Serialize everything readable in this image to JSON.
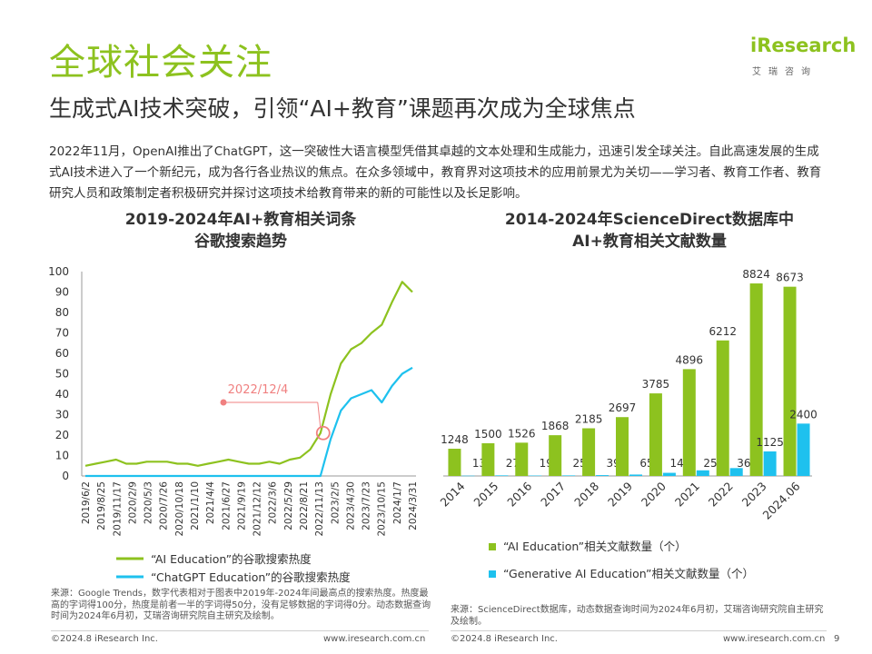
{
  "header": {
    "title": "全球社会关注",
    "subtitle": "生成式AI技术突破，引领“AI+教育”课题再次成为全球焦点",
    "logo": "iResearch",
    "logo_sub": "艾瑞咨询"
  },
  "intro": "2022年11月，OpenAI推出了ChatGPT，这一突破性大语言模型凭借其卓越的文本处理和生成能力，迅速引发全球关注。自此高速发展的生成式AI技术进入了一个新纪元，成为各行各业热议的焦点。在众多领域中，教育界对这项技术的应用前景尤为关切——学习者、教育工作者、教育研究人员和政策制定者积极研究并探讨这项技术给教育带来的新的可能性以及长足影响。",
  "chart_data": [
    {
      "type": "line",
      "title_line1": "2019-2024年AI+教育相关词条",
      "title_line2": "谷歌搜索趋势",
      "x_tick_labels": [
        "2019/6/2",
        "2019/8/25",
        "2019/11/17",
        "2020/2/9",
        "2020/5/3",
        "2020/7/26",
        "2020/10/18",
        "2021/1/10",
        "2021/4/4",
        "2021/6/27",
        "2021/9/19",
        "2021/12/12",
        "2022/3/6",
        "2022/5/29",
        "2022/8/21",
        "2022/11/13",
        "2023/2/5",
        "2023/4/30",
        "2023/7/23",
        "2023/10/15",
        "2024/1/7",
        "2024/3/31"
      ],
      "y_ticks": [
        0,
        10,
        20,
        30,
        40,
        50,
        60,
        70,
        80,
        90,
        100
      ],
      "ylim": [
        0,
        100
      ],
      "annotation": {
        "label": "2022/12/4",
        "x": "2022/12/4"
      },
      "series": [
        {
          "name": "“AI Education”的谷歌搜索热度",
          "color": "#8dc21f",
          "values": [
            5,
            6,
            7,
            8,
            6,
            6,
            7,
            7,
            7,
            6,
            6,
            5,
            6,
            7,
            8,
            7,
            6,
            6,
            7,
            6,
            8,
            9,
            13,
            21,
            40,
            55,
            62,
            65,
            70,
            74,
            85,
            95,
            90
          ]
        },
        {
          "name": "“ChatGPT Education”的谷歌搜索热度",
          "color": "#1ec1ee",
          "values": [
            0,
            0,
            0,
            0,
            0,
            0,
            0,
            0,
            0,
            0,
            0,
            0,
            0,
            0,
            0,
            0,
            0,
            0,
            0,
            0,
            0,
            0,
            0,
            0,
            18,
            32,
            38,
            40,
            42,
            36,
            44,
            50,
            53
          ]
        }
      ]
    },
    {
      "type": "bar",
      "title_line1": "2014-2024年ScienceDirect数据库中",
      "title_line2": "AI+教育相关文献数量",
      "categories": [
        "2014",
        "2015",
        "2016",
        "2017",
        "2018",
        "2019",
        "2020",
        "2021",
        "2022",
        "2023",
        "2024.06"
      ],
      "series": [
        {
          "name": "“AI Education”相关文献数量（个）",
          "color": "#8dc21f",
          "values": [
            1248,
            1500,
            1526,
            1868,
            2185,
            2697,
            3785,
            4896,
            6212,
            8824,
            8673
          ]
        },
        {
          "name": "“Generative AI Education”相关文献数量（个）",
          "color": "#1ec1ee",
          "values": [
            13,
            27,
            19,
            25,
            39,
            65,
            144,
            258,
            361,
            1125,
            2400
          ]
        }
      ],
      "ylim": [
        0,
        9200
      ]
    }
  ],
  "sources": {
    "left": "来源：Google Trends，数字代表相对于图表中2019年-2024年间最高点的搜索热度。热度最高的字词得100分，热度是前者一半的字词得50分，没有足够数据的字词得0分。动态数据查询时间为2024年6月初，艾瑞咨询研究院自主研究及绘制。",
    "right": "来源：ScienceDirect数据库，动态数据查询时间为2024年6月初，艾瑞咨询研究院自主研究及绘制。"
  },
  "footer": {
    "left_copyright": "©2024.8 iResearch Inc.",
    "left_url": "www.iresearch.com.cn",
    "right_copyright": "©2024.8 iResearch Inc.",
    "right_url": "www.iresearch.com.cn",
    "page_number": "9"
  }
}
